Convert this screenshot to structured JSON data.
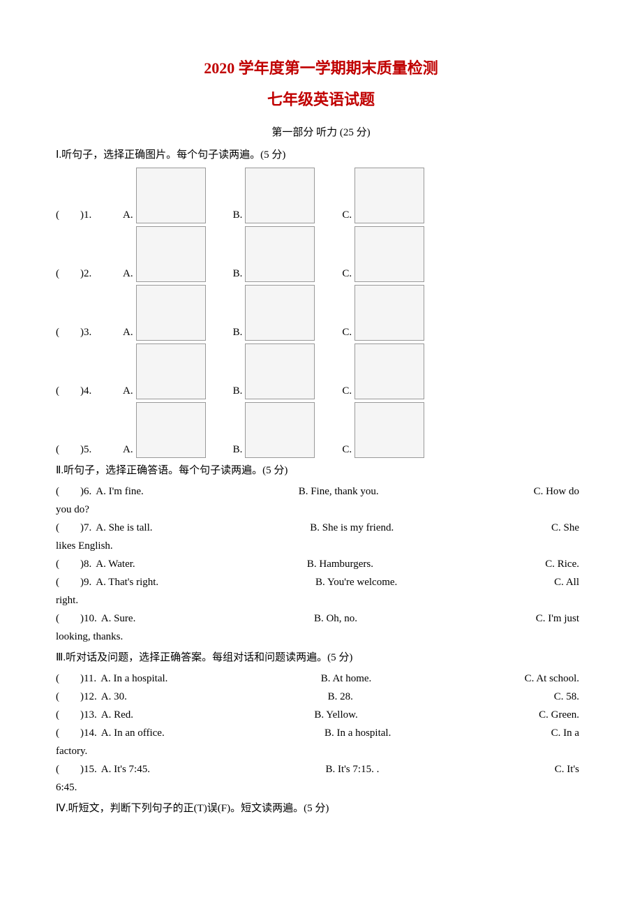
{
  "colors": {
    "text": "#000000",
    "title": "#c00000",
    "background": "#ffffff"
  },
  "fonts": {
    "body_family": "SimSun",
    "body_size": 15,
    "title_size": 22,
    "title_weight": "bold"
  },
  "title_line1": "2020 学年度第一学期期末质量检测",
  "title_line2": "七年级英语试题",
  "section_listening": "第一部分  听力 (25 分)",
  "part1_instruction": "Ⅰ.听句子，选择正确图片。每个句子读两遍。(5 分)",
  "img_questions": [
    {
      "num": "1",
      "options": [
        "A",
        "B",
        "C"
      ]
    },
    {
      "num": "2",
      "options": [
        "A",
        "B",
        "C"
      ]
    },
    {
      "num": "3",
      "options": [
        "A",
        "B",
        "C"
      ]
    },
    {
      "num": "4",
      "options": [
        "A",
        "B",
        "C"
      ]
    },
    {
      "num": "5",
      "options": [
        "A",
        "B",
        "C"
      ]
    }
  ],
  "part2_instruction": "Ⅱ.听句子，选择正确答语。每个句子读两遍。(5 分)",
  "q6_prefix": "(　　)6.",
  "q6_a": "A. I'm fine.",
  "q6_b": "B. Fine, thank you.",
  "q6_c": "C.   How   do",
  "q6_tail": "you do?",
  "q7_prefix": "(　　)7.",
  "q7_a": "A. She is tall.",
  "q7_b": "B. She is my friend.",
  "q7_c": "C.      She",
  "q7_tail": "likes English.",
  "q8_prefix": "(　　)8.",
  "q8_a": "A. Water.",
  "q8_b": "B. Hamburgers.",
  "q8_c": "C. Rice.",
  "q9_prefix": "(　　)9.",
  "q9_a": "A. That's right.",
  "q9_b": "B. You're welcome.",
  "q9_c": "C.      All",
  "q9_tail": "right.",
  "q10_prefix": "(　　)10.",
  "q10_a": "A. Sure.",
  "q10_b": "B. Oh, no.",
  "q10_c": "C.   I'm    just",
  "q10_tail": "looking, thanks.",
  "part3_instruction": "Ⅲ.听对话及问题，选择正确答案。每组对话和问题读两遍。(5 分)",
  "q11_prefix": "(　　)11.",
  "q11_a": "A. In a hospital.",
  "q11_b": "B. At home.",
  "q11_c": "C. At school.",
  "q12_prefix": "(　　)12.",
  "q12_a": "A. 30.",
  "q12_b": "B. 28.",
  "q12_c": "C. 58.",
  "q13_prefix": "(　　)13.",
  "q13_a": "A. Red.",
  "q13_b": "B. Yellow.",
  "q13_c": "C. Green.",
  "q14_prefix": "(　　)14.",
  "q14_a": "A. In an office.",
  "q14_b": "B. In a hospital.",
  "q14_c": "C.   In   a",
  "q14_tail": "factory.",
  "q15_prefix": "(　　)15.",
  "q15_a": "A. It's 7:45.",
  "q15_b": "B. It's 7:15.     .",
  "q15_c": "C.   It's",
  "q15_tail": "6:45.",
  "part4_instruction": "Ⅳ.听短文，判断下列句子的正(T)误(F)。短文读两遍。(5 分)"
}
